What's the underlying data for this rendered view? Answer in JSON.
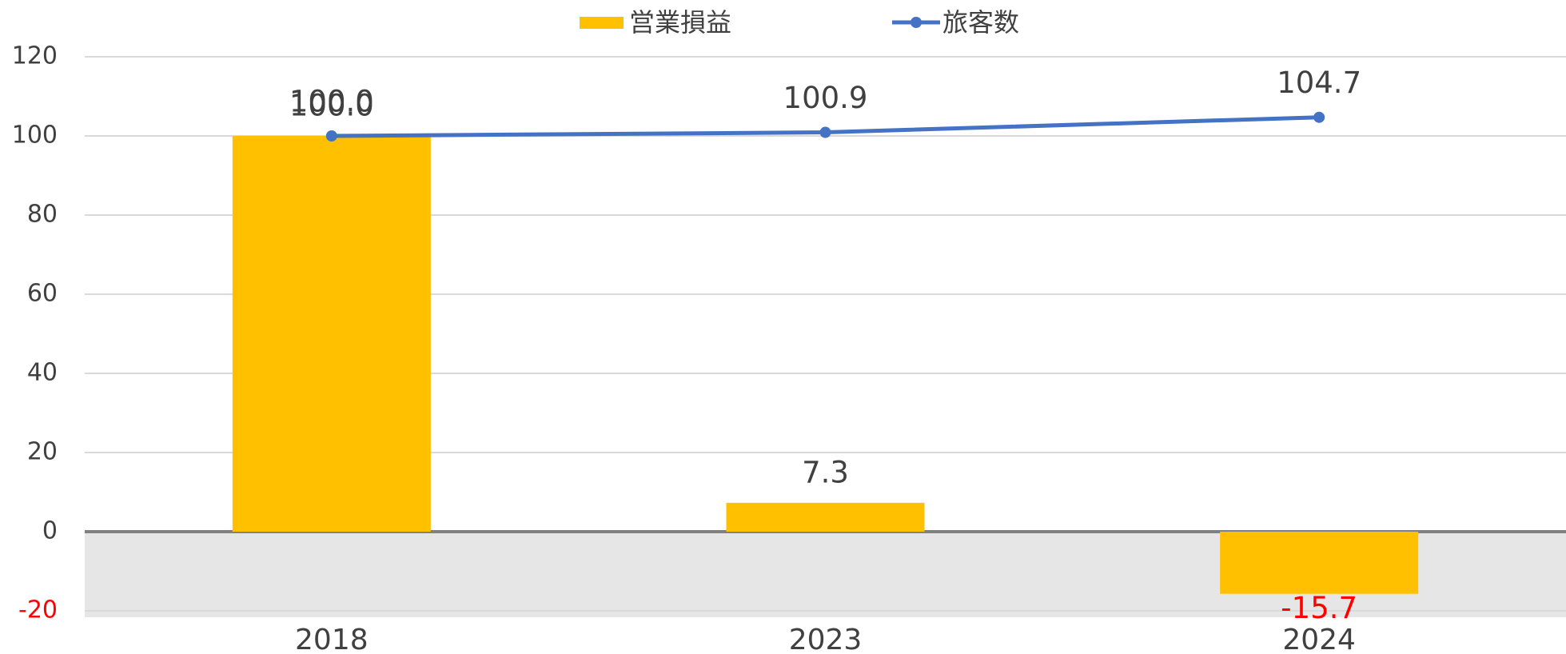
{
  "chart_data": {
    "type": "bar_line",
    "categories": [
      "2018",
      "2023",
      "2024"
    ],
    "series": [
      {
        "name": "営業損益",
        "type": "bar",
        "color": "#ffc000",
        "values": [
          100.0,
          7.3,
          -15.7
        ],
        "value_labels": [
          "100.0",
          "7.3",
          "-15.7"
        ]
      },
      {
        "name": "旅客数",
        "type": "line",
        "color": "#4472c4",
        "values": [
          100.0,
          100.9,
          104.7
        ],
        "value_labels": [
          "100.0",
          "100.9",
          "104.7"
        ]
      }
    ],
    "ylim": [
      -20,
      120
    ],
    "yticks": [
      -20,
      0,
      20,
      40,
      60,
      80,
      100,
      120
    ],
    "grid": true,
    "legend": "top",
    "negative_color": "#ff0000",
    "negative_fill": "#e6e6e6"
  }
}
